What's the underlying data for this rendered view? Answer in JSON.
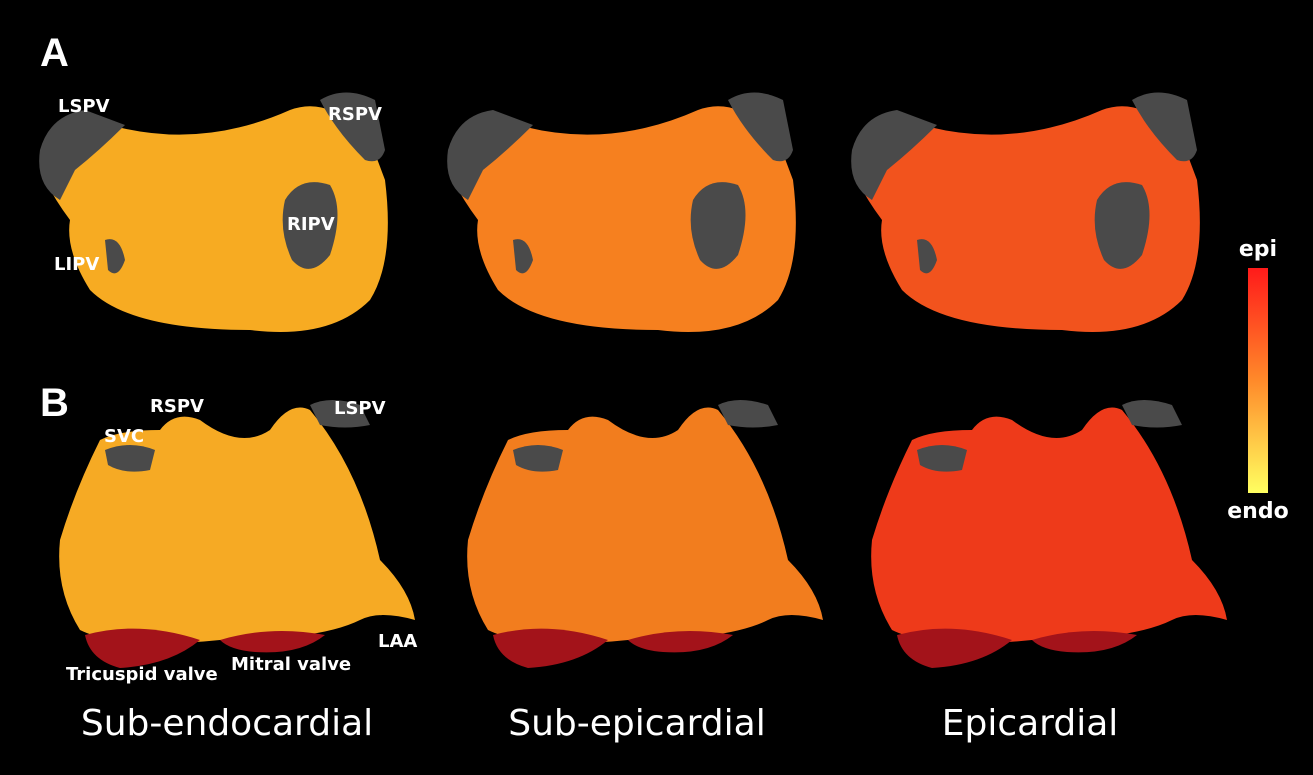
{
  "panels": [
    {
      "label": "A",
      "annotations": [
        "LSPV",
        "RSPV",
        "RIPV",
        "LIPV"
      ]
    },
    {
      "label": "B",
      "annotations": [
        "RSPV",
        "LSPV",
        "SVC",
        "Tricuspid valve",
        "Mitral valve",
        "LAA"
      ]
    }
  ],
  "columns": [
    "Sub-endocardial",
    "Sub-epicardial",
    "Epicardial"
  ],
  "colorbar": {
    "top": "epi",
    "bottom": "endo"
  }
}
